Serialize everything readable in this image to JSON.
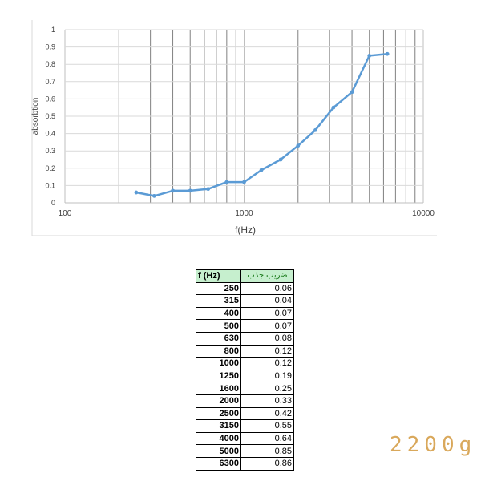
{
  "chart_data": {
    "type": "line",
    "xscale": "log",
    "xlim": [
      100,
      10000
    ],
    "ylim": [
      0,
      1
    ],
    "xlabel": "f(Hz)",
    "ylabel": "absorbtion",
    "x_tick_labels": [
      "100",
      "1000",
      "10000"
    ],
    "y_tick_labels": [
      "0",
      "0.1",
      "0.2",
      "0.3",
      "0.4",
      "0.5",
      "0.6",
      "0.7",
      "0.8",
      "0.9",
      "1"
    ],
    "grid": true,
    "series_color": "#5b9bd5",
    "series": [
      {
        "x": [
          250,
          315,
          400,
          500,
          630,
          800,
          1000,
          1250,
          1600,
          2000,
          2500,
          3150,
          4000,
          5000,
          6300
        ],
        "y": [
          0.06,
          0.04,
          0.07,
          0.07,
          0.08,
          0.12,
          0.12,
          0.19,
          0.25,
          0.33,
          0.42,
          0.55,
          0.64,
          0.85,
          0.86
        ]
      }
    ]
  },
  "table": {
    "header_f": "f (Hz)",
    "header_abs": "ضریب جذب",
    "rows": [
      {
        "f": "250",
        "a": "0.06"
      },
      {
        "f": "315",
        "a": "0.04"
      },
      {
        "f": "400",
        "a": "0.07"
      },
      {
        "f": "500",
        "a": "0.07"
      },
      {
        "f": "630",
        "a": "0.08"
      },
      {
        "f": "800",
        "a": "0.12"
      },
      {
        "f": "1000",
        "a": "0.12"
      },
      {
        "f": "1250",
        "a": "0.19"
      },
      {
        "f": "1600",
        "a": "0.25"
      },
      {
        "f": "2000",
        "a": "0.33"
      },
      {
        "f": "2500",
        "a": "0.42"
      },
      {
        "f": "3150",
        "a": "0.55"
      },
      {
        "f": "4000",
        "a": "0.64"
      },
      {
        "f": "5000",
        "a": "0.85"
      },
      {
        "f": "6300",
        "a": "0.86"
      }
    ]
  },
  "weight_label": "2200g"
}
